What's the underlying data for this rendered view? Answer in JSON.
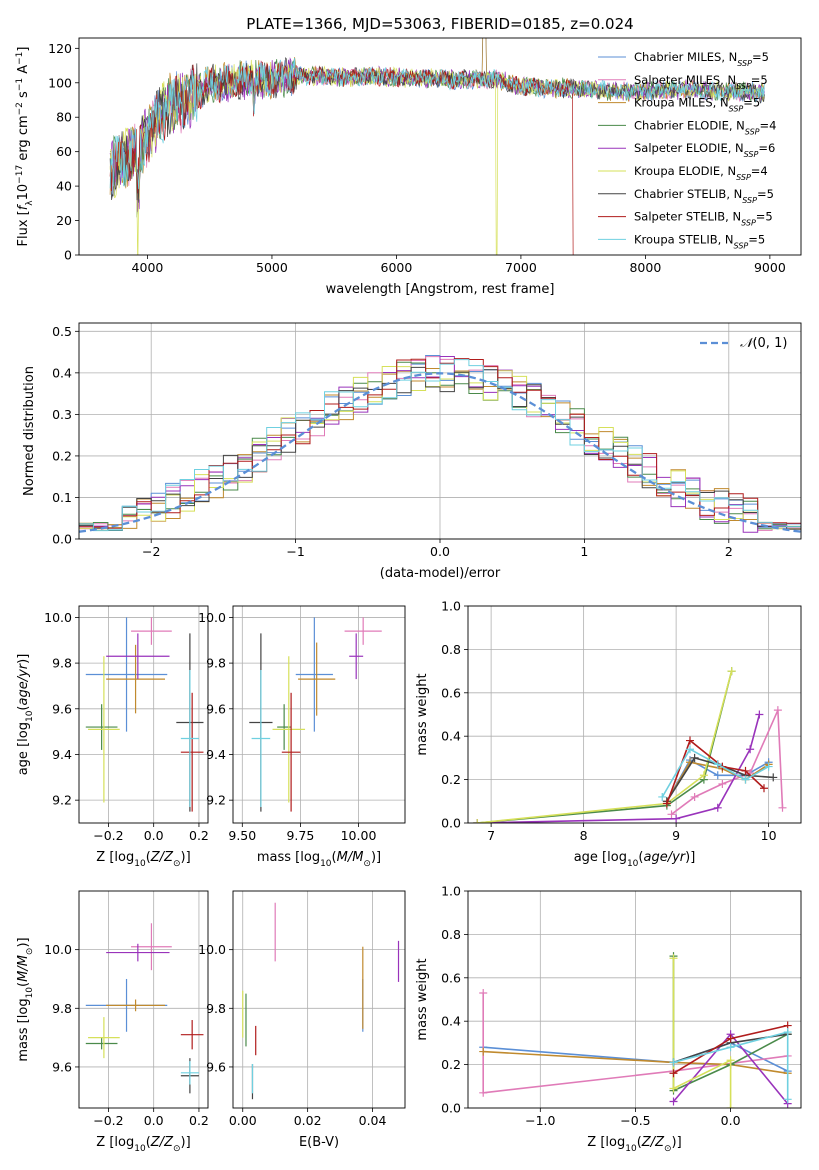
{
  "figure": {
    "title": "PLATE=1366, MJD=53063, FIBERID=0185, z=0.024",
    "series": [
      {
        "key": "cm",
        "color": "#5b8fd6",
        "label": "Chabrier MILES, N",
        "sub": "SSP",
        "eq": "=5"
      },
      {
        "key": "sm",
        "color": "#e07bb8",
        "label": "Salpeter MILES, N",
        "sub": "SSP",
        "eq": "=5"
      },
      {
        "key": "km",
        "color": "#c08a2e",
        "label": "Kroupa MILES, N",
        "sub": "SSP",
        "eq": "=5"
      },
      {
        "key": "ce",
        "color": "#4a8a4a",
        "label": "Chabrier ELODIE, N",
        "sub": "SSP",
        "eq": "=4"
      },
      {
        "key": "se",
        "color": "#9933bb",
        "label": "Salpeter ELODIE, N",
        "sub": "SSP",
        "eq": "=6"
      },
      {
        "key": "ke",
        "color": "#d6e05a",
        "label": "Kroupa ELODIE, N",
        "sub": "SSP",
        "eq": "=4"
      },
      {
        "key": "cs",
        "color": "#444444",
        "label": "Chabrier STELIB, N",
        "sub": "SSP",
        "eq": "=5"
      },
      {
        "key": "ss",
        "color": "#b01c1c",
        "label": "Salpeter STELIB, N",
        "sub": "SSP",
        "eq": "=5"
      },
      {
        "key": "ks",
        "color": "#6fd0e0",
        "label": "Kroupa STELIB, N",
        "sub": "SSP",
        "eq": "=5"
      }
    ]
  },
  "chart_data": [
    {
      "id": "spectrum",
      "type": "line",
      "xlabel": "wavelength [Angstrom, rest frame]",
      "ylabel": "Flux [fλ10⁻¹⁷ erg cm⁻² s⁻¹ A⁻¹]",
      "xlim": [
        3450,
        9250
      ],
      "ylim": [
        0,
        126
      ],
      "xticks": [
        4000,
        5000,
        6000,
        7000,
        8000,
        9000
      ],
      "yticks": [
        0,
        20,
        40,
        60,
        80,
        100,
        120
      ],
      "x": [
        3700,
        3800,
        3900,
        4000,
        4100,
        4200,
        4300,
        4400,
        4500,
        4600,
        4800,
        5000,
        5200,
        5400,
        5600,
        5800,
        6000,
        6200,
        6400,
        6600,
        6800,
        7000,
        7200,
        7400,
        7600,
        7800,
        8000,
        8200,
        8400,
        8600,
        8800,
        8950
      ],
      "flux": [
        48,
        55,
        60,
        70,
        82,
        88,
        90,
        95,
        99,
        100,
        102,
        102,
        104,
        104,
        103,
        104,
        103,
        103,
        102,
        102,
        102,
        98,
        97,
        97,
        96,
        95,
        95,
        96,
        96,
        95,
        95,
        94
      ],
      "dropouts": [
        {
          "series": "ke",
          "x": 3920
        },
        {
          "series": "ke",
          "x": 6800
        },
        {
          "series": "ss",
          "x": 7420
        }
      ],
      "legend": "upper right",
      "grid": false
    },
    {
      "id": "residuals",
      "type": "histogram",
      "xlabel": "(data-model)/error",
      "ylabel": "Normed distribution",
      "xlim": [
        -2.5,
        2.5
      ],
      "ylim": [
        0,
        0.52
      ],
      "xticks": [
        -2,
        -1,
        0,
        1,
        2
      ],
      "yticks": [
        0.0,
        0.1,
        0.2,
        0.3,
        0.4,
        0.5
      ],
      "reference": {
        "label": "N(0,1)",
        "mean": 0,
        "sigma": 1
      },
      "bin_width": 0.1,
      "bin_start": -2.5,
      "legend": "upper right",
      "grid": true
    },
    {
      "id": "age_vs_Z",
      "type": "errorbar",
      "xlabel": "Z [log10(Z/Z☉)]",
      "ylabel": "age [log10(age/yr)]",
      "xlim": [
        -0.33,
        0.24
      ],
      "ylim": [
        9.1,
        10.05
      ],
      "xticks": [
        -0.2,
        0.0,
        0.2
      ],
      "yticks": [
        9.2,
        9.4,
        9.6,
        9.8,
        10.0
      ],
      "points": [
        {
          "s": "cm",
          "x": -0.12,
          "y": 9.75,
          "xerr": 0.18,
          "yerr": 0.25
        },
        {
          "s": "sm",
          "x": -0.01,
          "y": 9.94,
          "xerr": 0.09,
          "yerr": 0.06
        },
        {
          "s": "km",
          "x": -0.08,
          "y": 9.73,
          "xerr": 0.13,
          "yerr": 0.15
        },
        {
          "s": "ce",
          "x": -0.23,
          "y": 9.52,
          "xerr": 0.07,
          "yerr": 0.1
        },
        {
          "s": "se",
          "x": -0.07,
          "y": 9.83,
          "xerr": 0.14,
          "yerr": 0.1
        },
        {
          "s": "ke",
          "x": -0.22,
          "y": 9.51,
          "xerr": 0.07,
          "yerr": 0.32
        },
        {
          "s": "cs",
          "x": 0.16,
          "y": 9.54,
          "xerr": 0.06,
          "yerr": 0.39
        },
        {
          "s": "ss",
          "x": 0.17,
          "y": 9.41,
          "xerr": 0.05,
          "yerr": 0.26
        },
        {
          "s": "ks",
          "x": 0.16,
          "y": 9.47,
          "xerr": 0.04,
          "yerr": 0.3
        }
      ],
      "grid": true
    },
    {
      "id": "age_vs_mass",
      "type": "errorbar",
      "xlabel": "mass [log10(M/M☉)]",
      "ylabel": "",
      "xlim": [
        9.46,
        10.2
      ],
      "ylim": [
        9.1,
        10.05
      ],
      "xticks": [
        9.5,
        9.75,
        10.0
      ],
      "yticks": [
        9.2,
        9.4,
        9.6,
        9.8,
        10.0
      ],
      "points": [
        {
          "s": "cm",
          "x": 9.81,
          "y": 9.75,
          "xerr": 0.08,
          "yerr": 0.25
        },
        {
          "s": "sm",
          "x": 10.02,
          "y": 9.94,
          "xerr": 0.08,
          "yerr": 0.06
        },
        {
          "s": "km",
          "x": 9.82,
          "y": 9.73,
          "xerr": 0.08,
          "yerr": 0.16
        },
        {
          "s": "ce",
          "x": 9.68,
          "y": 9.52,
          "xerr": 0.03,
          "yerr": 0.1
        },
        {
          "s": "se",
          "x": 9.99,
          "y": 9.83,
          "xerr": 0.03,
          "yerr": 0.1
        },
        {
          "s": "ke",
          "x": 9.7,
          "y": 9.51,
          "xerr": 0.07,
          "yerr": 0.32
        },
        {
          "s": "cs",
          "x": 9.58,
          "y": 9.54,
          "xerr": 0.05,
          "yerr": 0.39
        },
        {
          "s": "ss",
          "x": 9.71,
          "y": 9.41,
          "xerr": 0.04,
          "yerr": 0.26
        },
        {
          "s": "ks",
          "x": 9.58,
          "y": 9.47,
          "xerr": 0.04,
          "yerr": 0.3
        }
      ],
      "grid": true
    },
    {
      "id": "massweight_vs_age",
      "type": "line",
      "xlabel": "age [log10(age/yr)]",
      "ylabel": "mass weight",
      "xlim": [
        6.75,
        10.35
      ],
      "ylim": [
        0,
        1.0
      ],
      "xticks": [
        7,
        8,
        9,
        10
      ],
      "yticks": [
        0.0,
        0.2,
        0.4,
        0.6,
        0.8,
        1.0
      ],
      "series": [
        {
          "s": "cm",
          "x": [
            8.9,
            9.15,
            9.45,
            9.75,
            10.0
          ],
          "y": [
            0.1,
            0.29,
            0.22,
            0.22,
            0.28
          ]
        },
        {
          "s": "sm",
          "x": [
            8.95,
            9.2,
            9.5,
            9.8,
            10.1,
            10.15
          ],
          "y": [
            0.04,
            0.12,
            0.18,
            0.23,
            0.52,
            0.07
          ]
        },
        {
          "s": "km",
          "x": [
            8.9,
            9.15,
            9.5,
            9.75,
            10.0
          ],
          "y": [
            0.1,
            0.28,
            0.25,
            0.2,
            0.27
          ]
        },
        {
          "s": "ce",
          "x": [
            6.85,
            8.9,
            9.3,
            9.6
          ],
          "y": [
            0.0,
            0.08,
            0.2,
            0.7
          ]
        },
        {
          "s": "se",
          "x": [
            6.85,
            9.0,
            9.45,
            9.8,
            9.9
          ],
          "y": [
            0.0,
            0.02,
            0.07,
            0.34,
            0.5
          ]
        },
        {
          "s": "ke",
          "x": [
            6.85,
            8.9,
            9.3,
            9.6
          ],
          "y": [
            0.0,
            0.09,
            0.22,
            0.7
          ]
        },
        {
          "s": "cs",
          "x": [
            8.9,
            9.2,
            9.45,
            9.75,
            10.05
          ],
          "y": [
            0.1,
            0.3,
            0.27,
            0.22,
            0.21
          ]
        },
        {
          "s": "ss",
          "x": [
            8.9,
            9.15,
            9.5,
            9.75,
            9.95
          ],
          "y": [
            0.09,
            0.38,
            0.26,
            0.24,
            0.16
          ]
        },
        {
          "s": "ks",
          "x": [
            8.85,
            9.15,
            9.45,
            9.75,
            10.0
          ],
          "y": [
            0.12,
            0.34,
            0.27,
            0.2,
            0.26
          ]
        }
      ],
      "grid": true
    },
    {
      "id": "mass_vs_Z",
      "type": "errorbar",
      "xlabel": "Z [log10(Z/Z☉)]",
      "ylabel": "mass [log10(M/M☉)]",
      "xlim": [
        -0.33,
        0.24
      ],
      "ylim": [
        9.46,
        10.2
      ],
      "xticks": [
        -0.2,
        0.0,
        0.2
      ],
      "yticks": [
        9.6,
        9.8,
        10.0
      ],
      "points": [
        {
          "s": "cm",
          "x": -0.12,
          "y": 9.81,
          "xerr": 0.18,
          "yerr": 0.09
        },
        {
          "s": "sm",
          "x": -0.01,
          "y": 10.01,
          "xerr": 0.09,
          "yerr": 0.08
        },
        {
          "s": "km",
          "x": -0.08,
          "y": 9.81,
          "xerr": 0.13,
          "yerr": 0.02
        },
        {
          "s": "ce",
          "x": -0.23,
          "y": 9.68,
          "xerr": 0.07,
          "yerr": 0.02
        },
        {
          "s": "se",
          "x": -0.07,
          "y": 9.99,
          "xerr": 0.14,
          "yerr": 0.03
        },
        {
          "s": "ke",
          "x": -0.22,
          "y": 9.7,
          "xerr": 0.07,
          "yerr": 0.07
        },
        {
          "s": "cs",
          "x": 0.16,
          "y": 9.57,
          "xerr": 0.04,
          "yerr": 0.06
        },
        {
          "s": "ss",
          "x": 0.17,
          "y": 9.71,
          "xerr": 0.05,
          "yerr": 0.05
        },
        {
          "s": "ks",
          "x": 0.16,
          "y": 9.58,
          "xerr": 0.04,
          "yerr": 0.04
        }
      ],
      "grid": true
    },
    {
      "id": "mass_vs_ebv",
      "type": "errorbar",
      "xlabel": "E(B-V)",
      "ylabel": "",
      "xlim": [
        -0.003,
        0.05
      ],
      "ylim": [
        9.46,
        10.2
      ],
      "xticks": [
        0.0,
        0.02,
        0.04
      ],
      "yticks": [
        9.6,
        9.8,
        10.0
      ],
      "points": [
        {
          "s": "cm",
          "x": 0.037,
          "y": 9.81,
          "yerr": 0.09
        },
        {
          "s": "sm",
          "x": 0.01,
          "y": 10.06,
          "yerr": 0.1
        },
        {
          "s": "km",
          "x": 0.037,
          "y": 9.87,
          "yerr": 0.14
        },
        {
          "s": "ce",
          "x": 0.001,
          "y": 9.76,
          "yerr": 0.09
        },
        {
          "s": "se",
          "x": 0.048,
          "y": 9.96,
          "yerr": 0.07
        },
        {
          "s": "ke",
          "x": 0.0,
          "y": 9.78,
          "yerr": 0.08
        },
        {
          "s": "cs",
          "x": 0.003,
          "y": 9.55,
          "yerr": 0.06
        },
        {
          "s": "ss",
          "x": 0.004,
          "y": 9.69,
          "yerr": 0.05
        },
        {
          "s": "ks",
          "x": 0.003,
          "y": 9.56,
          "yerr": 0.05
        }
      ],
      "grid": true
    },
    {
      "id": "massweight_vs_Z",
      "type": "line",
      "xlabel": "Z [log10(Z/Z☉)]",
      "ylabel": "mass weight",
      "xlim": [
        -1.38,
        0.37
      ],
      "ylim": [
        0,
        1.0
      ],
      "xticks": [
        -1.0,
        -0.5,
        0.0
      ],
      "yticks": [
        0.0,
        0.2,
        0.4,
        0.6,
        0.8,
        1.0
      ],
      "series": [
        {
          "s": "cm",
          "x": [
            -1.3,
            -0.3,
            0.0,
            0.3
          ],
          "y": [
            0.28,
            0.21,
            0.3,
            0.17
          ]
        },
        {
          "s": "sm",
          "x": [
            -1.3,
            -1.3,
            -0.3,
            0.3
          ],
          "y": [
            0.53,
            0.07,
            0.17,
            0.24
          ]
        },
        {
          "s": "km",
          "x": [
            -1.3,
            -0.3,
            0.0,
            0.3
          ],
          "y": [
            0.26,
            0.21,
            0.2,
            0.16
          ]
        },
        {
          "s": "ce",
          "x": [
            -0.3,
            -0.3,
            0.0,
            0.3
          ],
          "y": [
            0.7,
            0.08,
            0.2,
            0.34
          ]
        },
        {
          "s": "se",
          "x": [
            -0.3,
            0.0,
            0.3
          ],
          "y": [
            0.03,
            0.34,
            0.02
          ]
        },
        {
          "s": "ke",
          "x": [
            -0.3,
            -0.3,
            0.0,
            0.0
          ],
          "y": [
            0.69,
            0.09,
            0.22,
            0.0
          ]
        },
        {
          "s": "cs",
          "x": [
            -0.3,
            0.0,
            0.3
          ],
          "y": [
            0.21,
            0.3,
            0.34
          ]
        },
        {
          "s": "ss",
          "x": [
            -0.3,
            0.0,
            0.3
          ],
          "y": [
            0.16,
            0.32,
            0.38
          ]
        },
        {
          "s": "ks",
          "x": [
            -0.3,
            0.0,
            0.3,
            0.3
          ],
          "y": [
            0.21,
            0.28,
            0.35,
            0.04
          ]
        }
      ],
      "grid": true
    }
  ]
}
